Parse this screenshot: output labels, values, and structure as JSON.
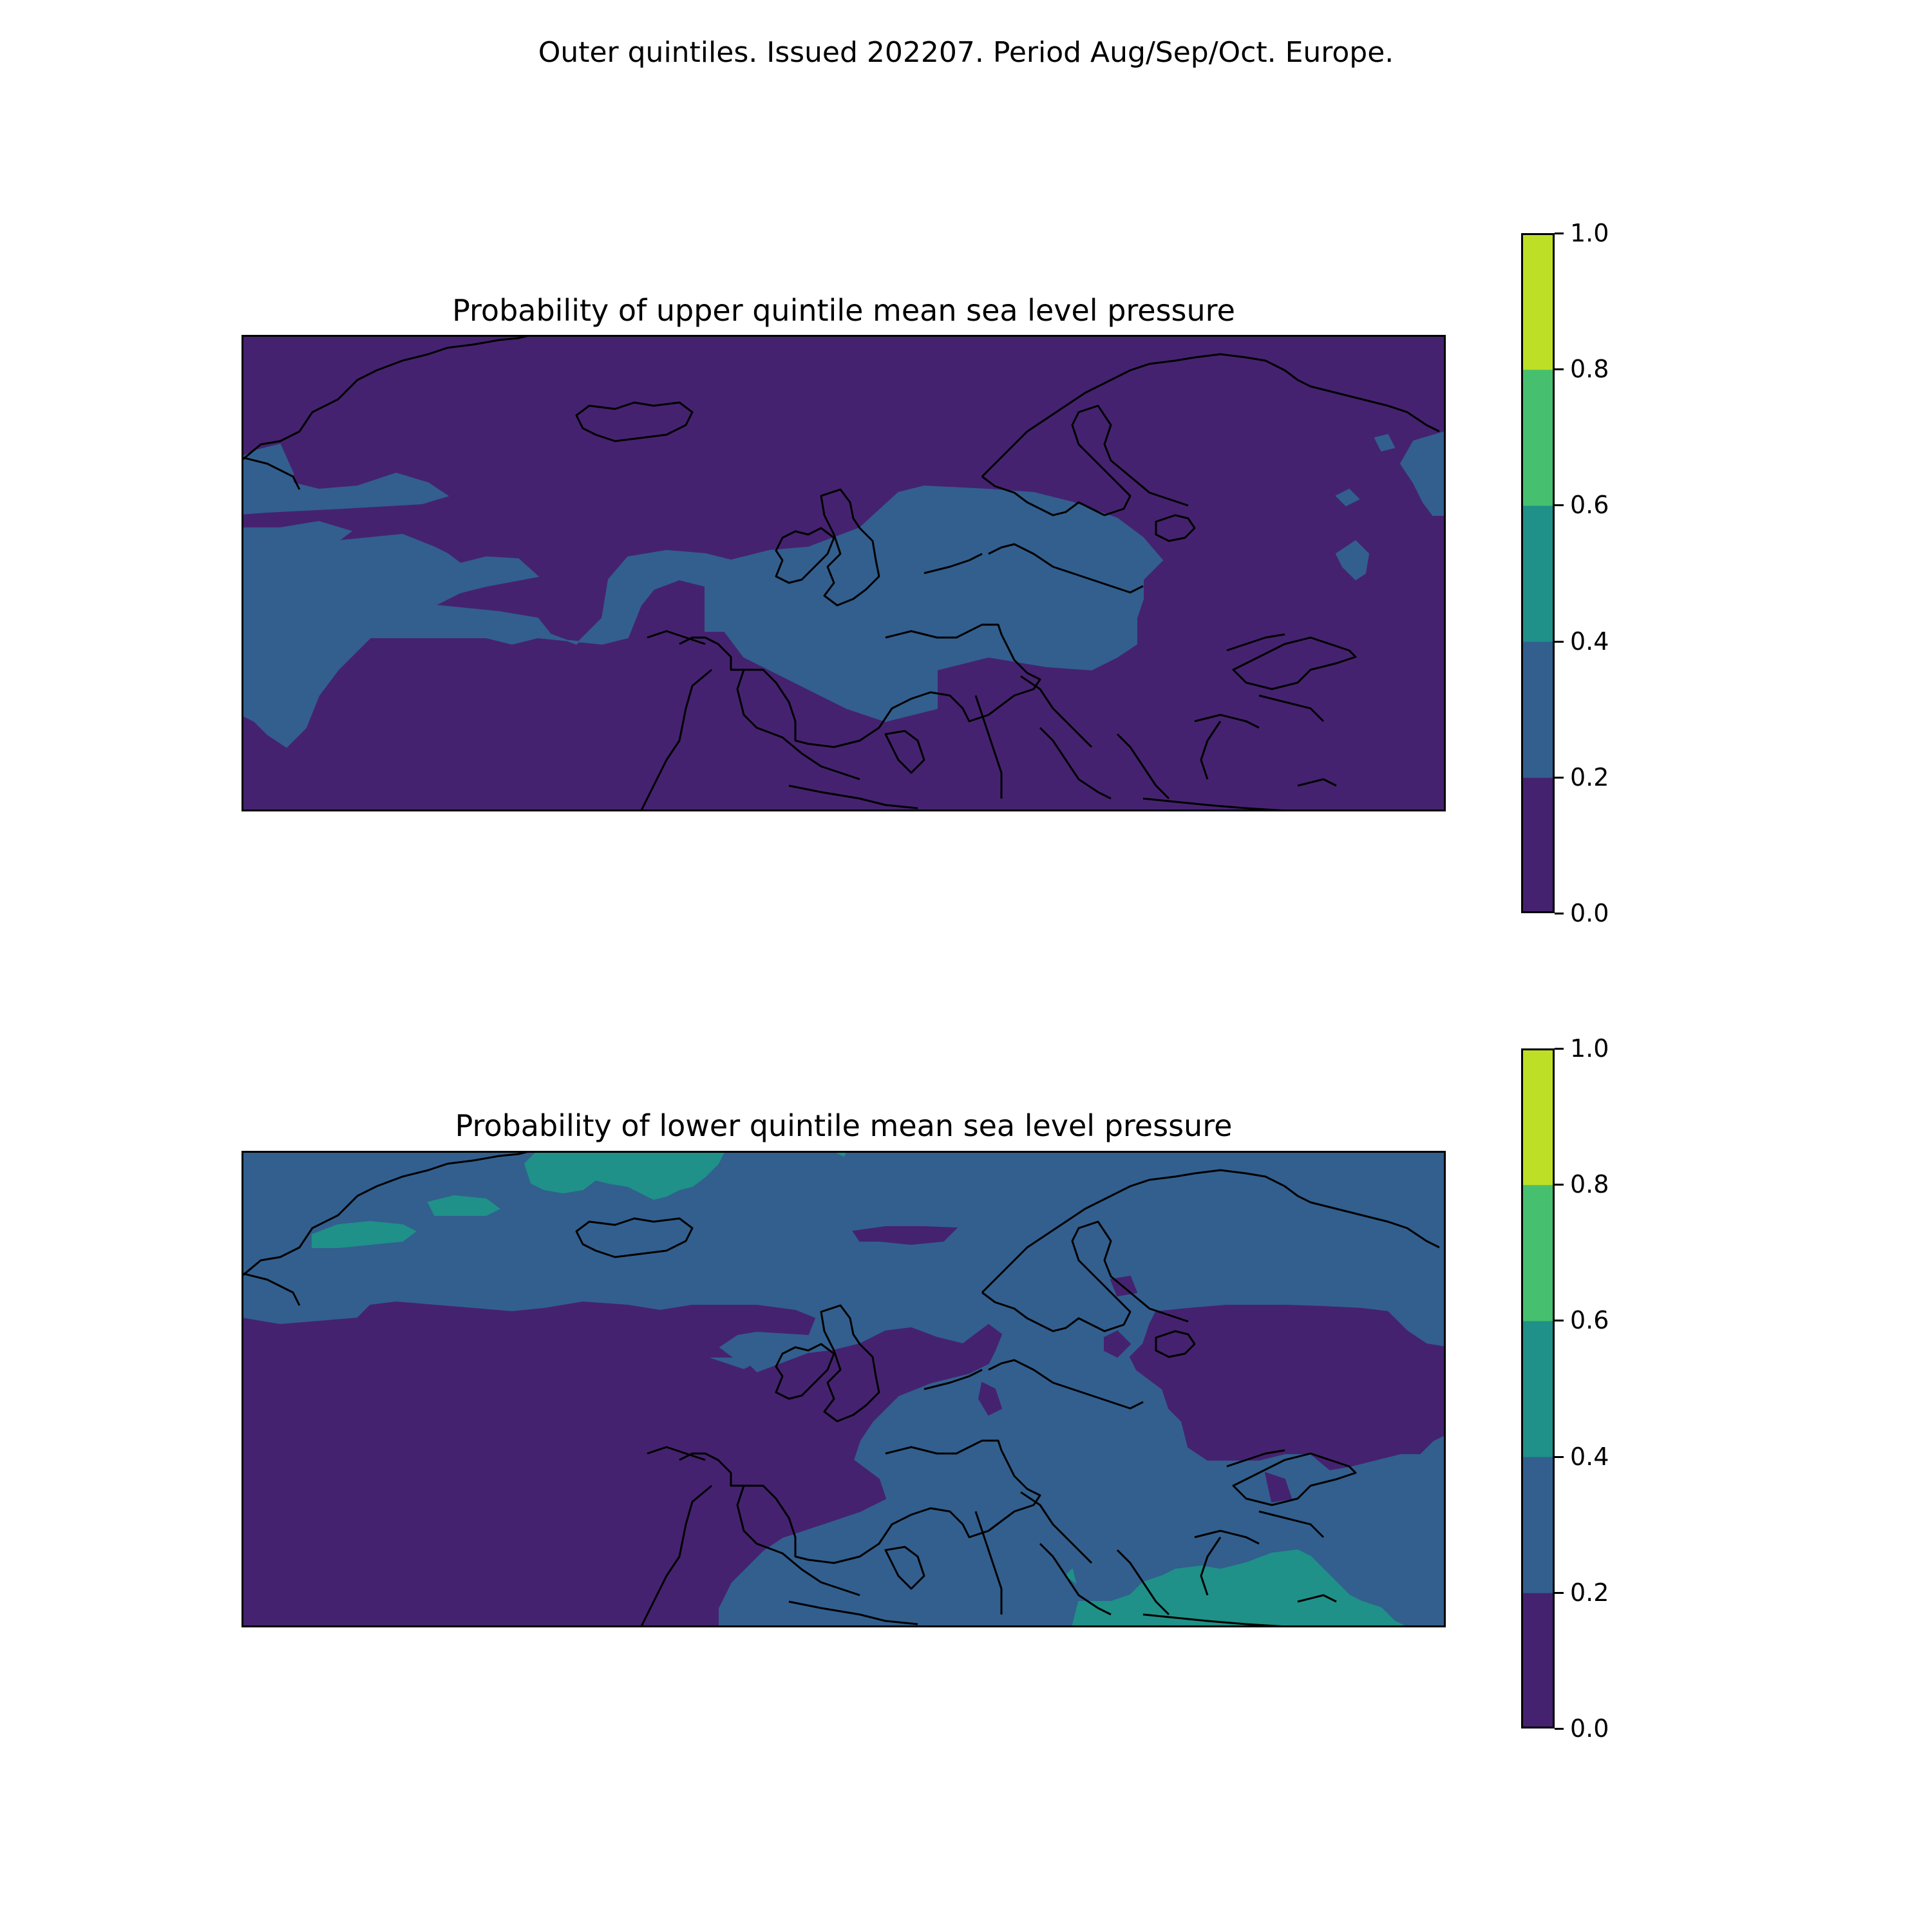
{
  "figure": {
    "suptitle": "Outer quintiles. Issued 202207. Period Aug/Sep/Oct. Europe."
  },
  "colors": {
    "c0": "#45226f",
    "c1": "#325f8e",
    "c2": "#1f9188",
    "c3": "#46c06f",
    "c4": "#bddf26",
    "coast": "#000000"
  },
  "colorbar": {
    "ticks": [
      "0.0",
      "0.2",
      "0.4",
      "0.6",
      "0.8",
      "1.0"
    ],
    "bins": [
      {
        "from": 0.0,
        "to": 0.2,
        "color": "#45226f"
      },
      {
        "from": 0.2,
        "to": 0.4,
        "color": "#325f8e"
      },
      {
        "from": 0.4,
        "to": 0.6,
        "color": "#1f9188"
      },
      {
        "from": 0.6,
        "to": 0.8,
        "color": "#46c06f"
      },
      {
        "from": 0.8,
        "to": 1.0,
        "color": "#bddf26"
      }
    ]
  },
  "panels": [
    {
      "title": "Probability of upper quintile mean sea level pressure",
      "background_bin": "0.0–0.2",
      "regions": [
        "0.2–0.4: North Atlantic west of Ireland, British Isles, central Europe, western Mediterranean, Baltic south coast"
      ]
    },
    {
      "title": "Probability of lower quintile mean sea level pressure",
      "background_bin": "0.2–0.4",
      "regions": [
        "0.0–0.2: Atlantic, Iberian Atlantic coast, North Sea, western Russia",
        "0.4–0.6: Greenland coast, Iceland, Eastern Mediterranean"
      ]
    }
  ]
}
